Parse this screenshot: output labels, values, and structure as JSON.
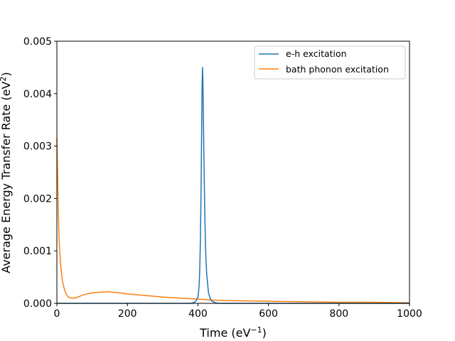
{
  "chart_data": {
    "type": "line",
    "title": "",
    "xlabel": "Time (eV",
    "xlabel_sup": "−1",
    "xlabel_suffix": ")",
    "ylabel": "Average Energy Transfer Rate (eV",
    "ylabel_sup": "2",
    "ylabel_suffix": ")",
    "xlim": [
      0,
      1000
    ],
    "ylim": [
      0,
      0.005
    ],
    "xticks": [
      0,
      200,
      400,
      600,
      800,
      1000
    ],
    "xtick_labels": [
      "0",
      "200",
      "400",
      "600",
      "800",
      "1000"
    ],
    "yticks": [
      0,
      0.001,
      0.002,
      0.003,
      0.004,
      0.005
    ],
    "ytick_labels": [
      "0.000",
      "0.001",
      "0.002",
      "0.003",
      "0.004",
      "0.005"
    ],
    "grid": false,
    "legend_position": "upper-right",
    "series": [
      {
        "name": "e-h excitation",
        "color": "#1f77b4",
        "x": [
          0,
          300,
          380,
          390,
          395,
          400,
          403,
          405,
          407,
          409,
          411,
          412,
          413,
          414,
          415,
          417,
          419,
          421,
          423,
          425,
          430,
          435,
          440,
          450,
          460,
          480,
          520,
          1000
        ],
        "y": [
          0,
          0,
          0,
          2e-05,
          5e-05,
          0.00012,
          0.0003,
          0.0006,
          0.0012,
          0.0022,
          0.0036,
          0.0042,
          0.0045,
          0.0043,
          0.0038,
          0.0028,
          0.0019,
          0.0012,
          0.0008,
          0.00055,
          0.0002,
          9e-05,
          4e-05,
          1e-05,
          0,
          0,
          0,
          0
        ]
      },
      {
        "name": "bath phonon excitation",
        "color": "#ff7f0e",
        "x": [
          0,
          1,
          2,
          4,
          6,
          8,
          10,
          13,
          16,
          20,
          25,
          30,
          35,
          40,
          45,
          50,
          60,
          70,
          80,
          100,
          120,
          140,
          150,
          160,
          180,
          200,
          250,
          300,
          350,
          400,
          450,
          500,
          600,
          700,
          800,
          900,
          1000
        ],
        "y": [
          0.00315,
          0.0029,
          0.0025,
          0.0018,
          0.0013,
          0.001,
          0.0008,
          0.00058,
          0.00042,
          0.0003,
          0.0002,
          0.00014,
          0.00011,
          0.0001,
          0.0001,
          0.0001,
          0.00012,
          0.00015,
          0.00017,
          0.0002,
          0.00021,
          0.00022,
          0.00022,
          0.00021,
          0.0002,
          0.00018,
          0.00015,
          0.00012,
          0.0001,
          8e-05,
          6e-05,
          5e-05,
          4e-05,
          3e-05,
          2e-05,
          2e-05,
          1e-05
        ]
      }
    ]
  }
}
